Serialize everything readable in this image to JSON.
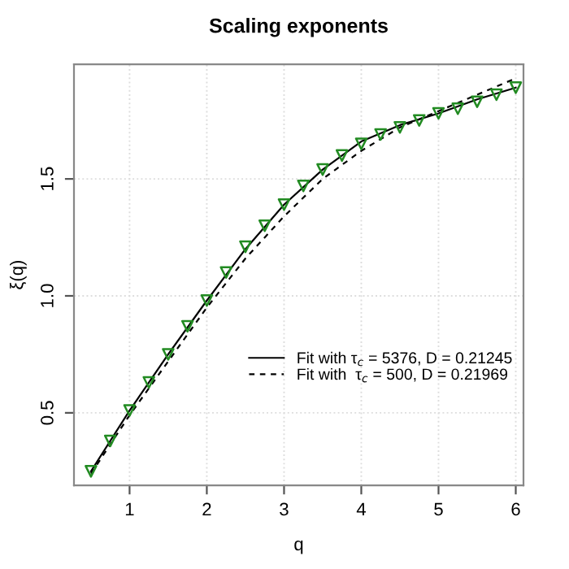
{
  "chart_data": {
    "type": "line",
    "title": "Scaling exponents",
    "xlabel": "q",
    "ylabel": "ξ(q)",
    "xlim": [
      0.28,
      6.1
    ],
    "ylim": [
      0.19,
      1.99
    ],
    "xticks": [
      1,
      2,
      3,
      4,
      5,
      6
    ],
    "yticks": [
      0.5,
      {
        "value": 1.0,
        "label": "1.0"
      },
      1.5
    ],
    "grid": true,
    "legend": "right",
    "series": [
      {
        "type": "scatter",
        "marker": "triangle",
        "color": "#228b22",
        "x": [
          0.5,
          0.75,
          1,
          1.25,
          1.5,
          1.75,
          2,
          2.25,
          2.5,
          2.75,
          3,
          3.25,
          3.5,
          3.75,
          4,
          4.25,
          4.5,
          4.75,
          5,
          5.25,
          5.5,
          5.75,
          6
        ],
        "values": [
          0.25,
          0.38,
          0.51,
          0.63,
          0.75,
          0.87,
          0.98,
          1.1,
          1.21,
          1.3,
          1.39,
          1.47,
          1.54,
          1.6,
          1.65,
          1.69,
          1.72,
          1.75,
          1.78,
          1.8,
          1.83,
          1.86,
          1.89
        ]
      },
      {
        "name": "Fit with τ$_{c}$ = 5376, D = 0.21245",
        "color": "#000000",
        "line_style": "solid",
        "x": [
          0.5,
          1,
          1.5,
          2,
          2.5,
          3,
          3.5,
          4,
          4.5,
          5,
          5.5,
          6
        ],
        "values": [
          0.25,
          0.51,
          0.75,
          0.98,
          1.2,
          1.39,
          1.54,
          1.66,
          1.73,
          1.78,
          1.84,
          1.89
        ]
      },
      {
        "name": "Fit with  τ$_{c}$ = 500, D = 0.21969",
        "color": "#000000",
        "line_style": "dashed",
        "x": [
          0.5,
          1,
          1.5,
          2,
          2.5,
          3,
          3.5,
          4,
          4.5,
          5,
          5.5,
          6
        ],
        "values": [
          0.24,
          0.49,
          0.72,
          0.95,
          1.16,
          1.34,
          1.5,
          1.62,
          1.72,
          1.79,
          1.86,
          1.93
        ]
      }
    ]
  }
}
